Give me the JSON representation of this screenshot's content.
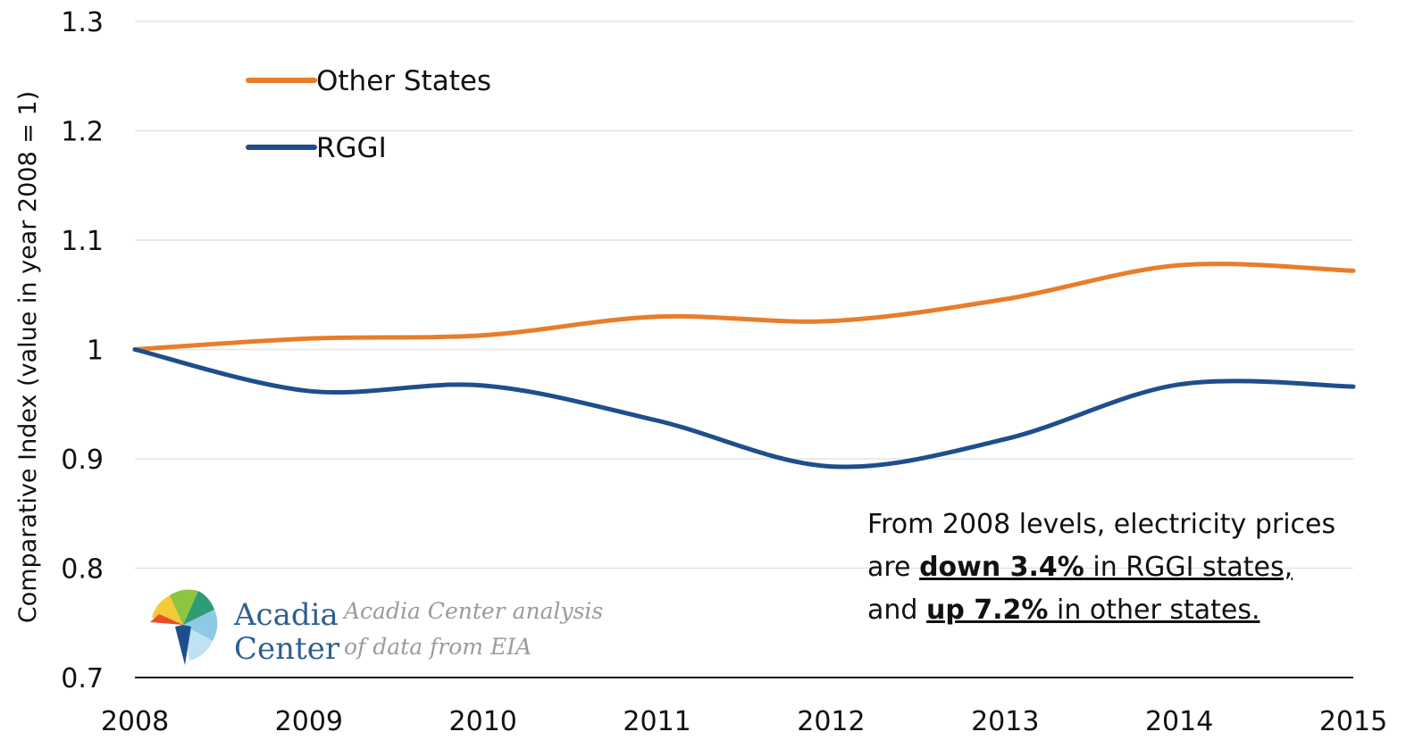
{
  "chart_data": {
    "type": "line",
    "ylabel": "Comparative Index (value in year 2008 = 1)",
    "xlabel": "",
    "x": [
      "2008",
      "2009",
      "2010",
      "2011",
      "2012",
      "2013",
      "2014",
      "2015"
    ],
    "ylim": [
      0.7,
      1.3
    ],
    "yticks": [
      "0.7",
      "0.8",
      "0.9",
      "1",
      "1.1",
      "1.2",
      "1.3"
    ],
    "grid": true,
    "legend_position": "top-left",
    "series": [
      {
        "name": "Other States",
        "color": "#e87d2b",
        "values": [
          1.0,
          1.01,
          1.013,
          1.03,
          1.026,
          1.046,
          1.077,
          1.072
        ]
      },
      {
        "name": "RGGI",
        "color": "#1f4e8c",
        "values": [
          1.0,
          0.962,
          0.967,
          0.935,
          0.893,
          0.918,
          0.968,
          0.966
        ]
      }
    ]
  },
  "logo": {
    "name_line1": "Acadia",
    "name_line2": "Center",
    "caption_line1": "Acadia Center analysis",
    "caption_line2": "of data from EIA"
  },
  "note": {
    "line1": "From 2008 levels, electricity prices",
    "line2_pre": "are ",
    "line2_strong": "down 3.4%",
    "line2_rest": " in RGGI states,",
    "line3_pre": "and ",
    "line3_strong": "up 7.2%",
    "line3_rest": " in other states."
  }
}
